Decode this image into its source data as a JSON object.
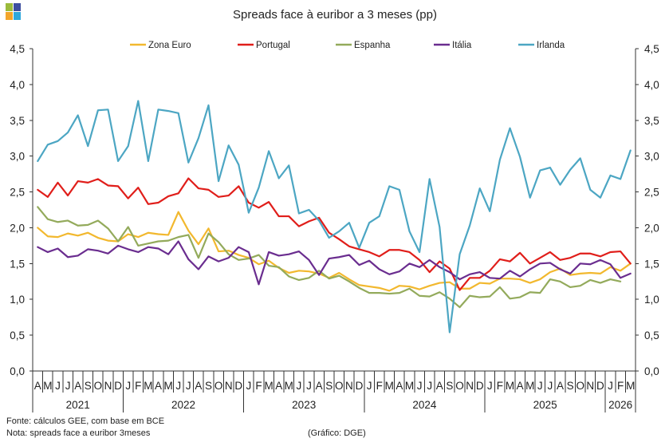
{
  "logo": {
    "colors": [
      "#9BBB3C",
      "#3D4F9F",
      "#F3A52B",
      "#2FA8DC"
    ]
  },
  "chart_data": {
    "type": "line",
    "title": "Spreads face à euribor a 3 meses (pp)",
    "ylim": [
      0,
      4.5
    ],
    "yticks": [
      0,
      0.5,
      1,
      1.5,
      2,
      2.5,
      3,
      3.5,
      4,
      4.5
    ],
    "ytick_labels": [
      "0,0",
      "0,5",
      "1,0",
      "1,5",
      "2,0",
      "2,5",
      "3,0",
      "3,5",
      "4,0",
      "4,5"
    ],
    "y_axis_sides": "both",
    "grid": false,
    "legend": "top",
    "x": [
      "2021-04",
      "2021-05",
      "2021-06",
      "2021-07",
      "2021-08",
      "2021-09",
      "2021-10",
      "2021-11",
      "2021-12",
      "2022-01",
      "2022-02",
      "2022-03",
      "2022-04",
      "2022-05",
      "2022-06",
      "2022-07",
      "2022-08",
      "2022-09",
      "2022-10",
      "2022-11",
      "2022-12",
      "2023-01",
      "2023-02",
      "2023-03",
      "2023-04",
      "2023-05",
      "2023-06",
      "2023-07",
      "2023-08",
      "2023-09",
      "2023-10",
      "2023-11",
      "2023-12",
      "2024-01",
      "2024-02",
      "2024-03",
      "2024-04",
      "2024-05",
      "2024-06",
      "2024-07",
      "2024-08",
      "2024-09",
      "2024-10",
      "2024-11",
      "2024-12",
      "2025-01",
      "2025-02",
      "2025-03",
      "2025-04",
      "2025-05",
      "2025-06",
      "2025-07",
      "2025-08",
      "2025-09",
      "2025-10",
      "2025-11",
      "2025-12",
      "2026-01",
      "2026-02",
      "2026-03"
    ],
    "xtick_labels": [
      "A",
      "M",
      "J",
      "J",
      "A",
      "S",
      "O",
      "N",
      "D",
      "J",
      "F",
      "M",
      "A",
      "M",
      "J",
      "J",
      "A",
      "S",
      "O",
      "N",
      "D",
      "J",
      "F",
      "M",
      "A",
      "M",
      "J",
      "J",
      "A",
      "S",
      "O",
      "N",
      "D",
      "J",
      "F",
      "M",
      "A",
      "M",
      "J",
      "J",
      "A",
      "S",
      "O",
      "N",
      "D",
      "J",
      "F",
      "M",
      "A",
      "M",
      "J",
      "J",
      "A",
      "S",
      "O",
      "N",
      "D",
      "J",
      "F",
      "M"
    ],
    "year_labels": [
      "2021",
      "2022",
      "2023",
      "2024",
      "2025",
      "2026"
    ],
    "series": [
      {
        "name": "Zona Euro",
        "color": "#F2B82E",
        "values": [
          2.0,
          1.88,
          1.87,
          1.92,
          1.89,
          1.93,
          1.86,
          1.82,
          1.81,
          1.91,
          1.87,
          1.93,
          1.91,
          1.9,
          2.22,
          1.96,
          1.77,
          1.99,
          1.67,
          1.68,
          1.62,
          1.58,
          1.49,
          1.54,
          1.44,
          1.37,
          1.4,
          1.39,
          1.36,
          1.3,
          1.37,
          1.28,
          1.2,
          1.18,
          1.16,
          1.12,
          1.19,
          1.18,
          1.14,
          1.19,
          1.23,
          1.24,
          1.15,
          1.15,
          1.23,
          1.22,
          1.29,
          1.29,
          1.28,
          1.23,
          1.28,
          1.38,
          1.43,
          1.34,
          1.36,
          1.37,
          1.36,
          1.45,
          1.4,
          1.5
        ]
      },
      {
        "name": "Portugal",
        "color": "#E01E1A",
        "values": [
          2.53,
          2.43,
          2.63,
          2.45,
          2.65,
          2.63,
          2.68,
          2.59,
          2.58,
          2.41,
          2.56,
          2.33,
          2.35,
          2.44,
          2.48,
          2.69,
          2.55,
          2.53,
          2.43,
          2.45,
          2.58,
          2.35,
          2.28,
          2.36,
          2.16,
          2.16,
          2.02,
          2.09,
          2.14,
          1.93,
          1.84,
          1.74,
          1.7,
          1.66,
          1.6,
          1.69,
          1.69,
          1.66,
          1.55,
          1.38,
          1.53,
          1.43,
          1.13,
          1.3,
          1.3,
          1.4,
          1.56,
          1.53,
          1.65,
          1.5,
          1.58,
          1.66,
          1.55,
          1.58,
          1.64,
          1.64,
          1.6,
          1.66,
          1.67,
          1.5
        ]
      },
      {
        "name": "Espanha",
        "color": "#93AA5B",
        "values": [
          2.29,
          2.12,
          2.08,
          2.1,
          2.03,
          2.04,
          2.1,
          1.99,
          1.81,
          2.01,
          1.75,
          1.78,
          1.81,
          1.82,
          1.87,
          1.9,
          1.58,
          1.92,
          1.8,
          1.63,
          1.55,
          1.57,
          1.62,
          1.47,
          1.45,
          1.32,
          1.27,
          1.3,
          1.4,
          1.29,
          1.33,
          1.25,
          1.16,
          1.09,
          1.09,
          1.08,
          1.09,
          1.15,
          1.05,
          1.04,
          1.1,
          1.01,
          0.89,
          1.05,
          1.03,
          1.04,
          1.17,
          1.01,
          1.03,
          1.1,
          1.09,
          1.28,
          1.25,
          1.17,
          1.19,
          1.27,
          1.23,
          1.28,
          1.25,
          null
        ]
      },
      {
        "name": "Itália",
        "color": "#6A2D8F",
        "values": [
          1.73,
          1.66,
          1.71,
          1.59,
          1.61,
          1.7,
          1.68,
          1.64,
          1.75,
          1.7,
          1.66,
          1.73,
          1.71,
          1.63,
          1.81,
          1.56,
          1.42,
          1.6,
          1.53,
          1.58,
          1.73,
          1.66,
          1.21,
          1.66,
          1.61,
          1.63,
          1.67,
          1.55,
          1.34,
          1.57,
          1.59,
          1.62,
          1.48,
          1.54,
          1.42,
          1.35,
          1.39,
          1.5,
          1.45,
          1.55,
          1.45,
          1.38,
          1.28,
          1.35,
          1.38,
          1.3,
          1.29,
          1.4,
          1.32,
          1.42,
          1.5,
          1.51,
          1.42,
          1.36,
          1.5,
          1.49,
          1.55,
          1.49,
          1.3,
          1.36
        ]
      },
      {
        "name": "Irlanda",
        "color": "#4CA6C3",
        "values": [
          2.93,
          3.16,
          3.21,
          3.33,
          3.57,
          3.14,
          3.64,
          3.65,
          2.93,
          3.14,
          3.77,
          2.93,
          3.65,
          3.63,
          3.6,
          2.91,
          3.25,
          3.71,
          2.65,
          3.15,
          2.88,
          2.21,
          2.56,
          3.07,
          2.69,
          2.87,
          2.2,
          2.25,
          2.1,
          1.86,
          1.95,
          2.07,
          1.72,
          2.07,
          2.16,
          2.58,
          2.53,
          1.95,
          1.66,
          2.68,
          2.01,
          0.54,
          1.63,
          2.03,
          2.55,
          2.23,
          2.95,
          3.39,
          2.99,
          2.42,
          2.8,
          2.84,
          2.6,
          2.81,
          2.97,
          2.53,
          2.42,
          2.73,
          2.68,
          3.08
        ]
      }
    ]
  },
  "footer": {
    "source": "Fonte: cálculos GEE, com base em BCE",
    "note": "Nota: spreads face a euribor 3meses",
    "credit": "(Gráfico: DGE)"
  }
}
